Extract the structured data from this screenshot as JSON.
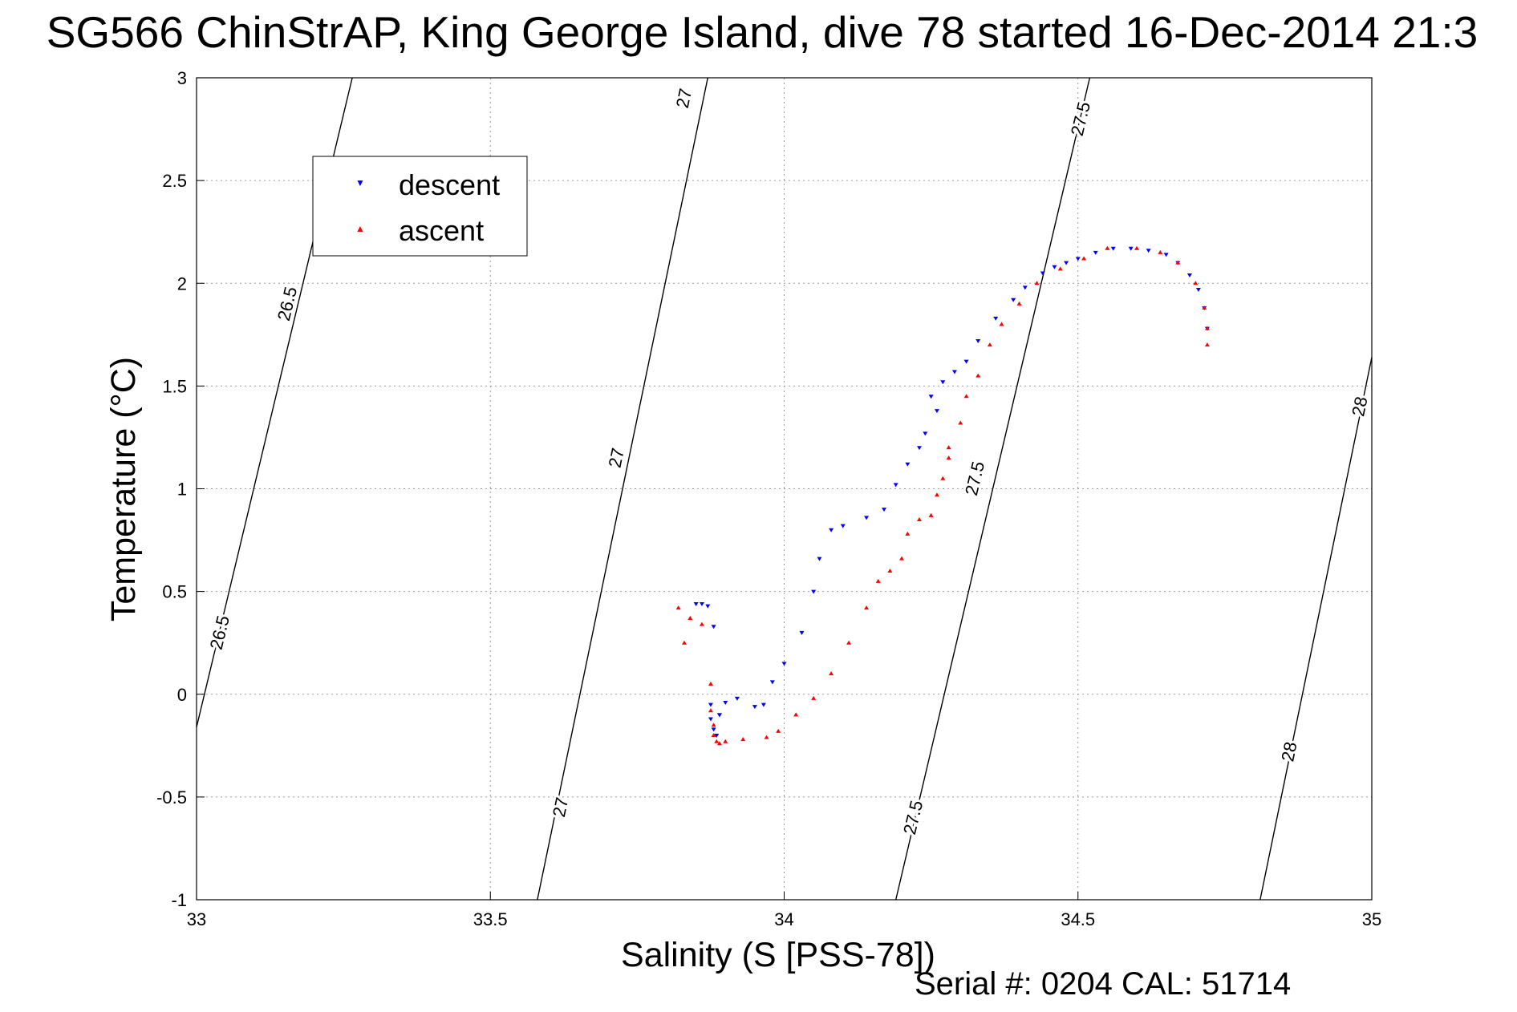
{
  "chart_data": {
    "type": "scatter",
    "title": "SG566 ChinStrAP, King George Island, dive 78 started 16-Dec-2014 21:3",
    "xlabel": "Salinity (S [PSS-78])",
    "ylabel": "Temperature (°C)",
    "xlim": [
      33,
      35
    ],
    "ylim": [
      -1,
      3
    ],
    "xticks": [
      33,
      33.5,
      34,
      34.5,
      35
    ],
    "yticks": [
      -1,
      -0.5,
      0,
      0.5,
      1,
      1.5,
      2,
      2.5,
      3
    ],
    "grid": true,
    "legend_position": "top-left",
    "series": [
      {
        "name": "descent",
        "marker": "triangle-down",
        "color": "#0000ff",
        "x": [
          33.85,
          33.86,
          33.87,
          33.88,
          33.89,
          33.875,
          33.875,
          33.88,
          33.885,
          33.89,
          33.9,
          33.92,
          33.95,
          33.98,
          33.965,
          34.0,
          34.03,
          34.05,
          34.06,
          34.08,
          34.1,
          34.14,
          34.17,
          34.19,
          34.21,
          34.23,
          34.24,
          34.26,
          34.25,
          34.27,
          34.29,
          34.31,
          34.33,
          34.36,
          34.39,
          34.41,
          34.44,
          34.46,
          34.48,
          34.5,
          34.53,
          34.56,
          34.59,
          34.62,
          34.65,
          34.67,
          34.69,
          34.705,
          34.715,
          34.72
        ],
        "y": [
          0.44,
          0.44,
          0.43,
          0.33,
          -0.1,
          -0.05,
          -0.12,
          -0.17,
          -0.2,
          -0.1,
          -0.04,
          -0.02,
          -0.06,
          0.06,
          -0.05,
          0.15,
          0.3,
          0.5,
          0.66,
          0.8,
          0.82,
          0.86,
          0.9,
          1.02,
          1.12,
          1.2,
          1.27,
          1.38,
          1.45,
          1.52,
          1.57,
          1.62,
          1.72,
          1.83,
          1.92,
          1.98,
          2.05,
          2.08,
          2.1,
          2.12,
          2.15,
          2.17,
          2.17,
          2.16,
          2.14,
          2.1,
          2.04,
          1.97,
          1.88,
          1.78
        ]
      },
      {
        "name": "ascent",
        "marker": "triangle-up",
        "color": "#ff0000",
        "x": [
          33.82,
          33.84,
          33.86,
          33.83,
          33.875,
          33.875,
          33.88,
          33.88,
          33.885,
          33.89,
          33.9,
          33.93,
          33.97,
          33.99,
          34.02,
          34.05,
          34.08,
          34.11,
          34.14,
          34.16,
          34.18,
          34.2,
          34.21,
          34.23,
          34.25,
          34.26,
          34.27,
          34.28,
          34.28,
          34.3,
          34.31,
          34.33,
          34.35,
          34.37,
          34.4,
          34.43,
          34.47,
          34.51,
          34.55,
          34.6,
          34.64,
          34.67,
          34.7,
          34.715,
          34.72,
          34.72
        ],
        "y": [
          0.42,
          0.37,
          0.34,
          0.25,
          0.05,
          -0.08,
          -0.15,
          -0.2,
          -0.23,
          -0.24,
          -0.23,
          -0.22,
          -0.21,
          -0.18,
          -0.1,
          -0.02,
          0.1,
          0.25,
          0.42,
          0.55,
          0.6,
          0.66,
          0.78,
          0.85,
          0.87,
          0.97,
          1.05,
          1.15,
          1.2,
          1.32,
          1.45,
          1.55,
          1.7,
          1.8,
          1.9,
          2.0,
          2.07,
          2.12,
          2.17,
          2.17,
          2.15,
          2.1,
          2.0,
          1.88,
          1.78,
          1.7
        ]
      }
    ],
    "contours": [
      {
        "level": "26.5",
        "x": [
          33.0,
          33.265
        ],
        "y": [
          -0.16,
          3.0
        ],
        "labels": [
          {
            "x": 33.04,
            "y": 0.3
          },
          {
            "x": 33.155,
            "y": 1.9
          }
        ]
      },
      {
        "level": "27",
        "x": [
          33.58,
          33.87
        ],
        "y": [
          -1.0,
          3.0
        ],
        "labels": [
          {
            "x": 33.62,
            "y": -0.55
          },
          {
            "x": 33.715,
            "y": 1.15
          },
          {
            "x": 33.83,
            "y": 2.9
          }
        ]
      },
      {
        "level": "27.5",
        "x": [
          34.19,
          34.52
        ],
        "y": [
          -1.0,
          3.0
        ],
        "labels": [
          {
            "x": 34.22,
            "y": -0.6
          },
          {
            "x": 34.325,
            "y": 1.05
          },
          {
            "x": 34.505,
            "y": 2.8
          }
        ]
      },
      {
        "level": "28",
        "x": [
          34.81,
          35.0
        ],
        "y": [
          -1.0,
          1.64
        ],
        "labels": [
          {
            "x": 34.86,
            "y": -0.28
          },
          {
            "x": 34.98,
            "y": 1.4
          }
        ]
      }
    ]
  },
  "footer": {
    "serial": "Serial #: 0204  CAL: 51714"
  }
}
